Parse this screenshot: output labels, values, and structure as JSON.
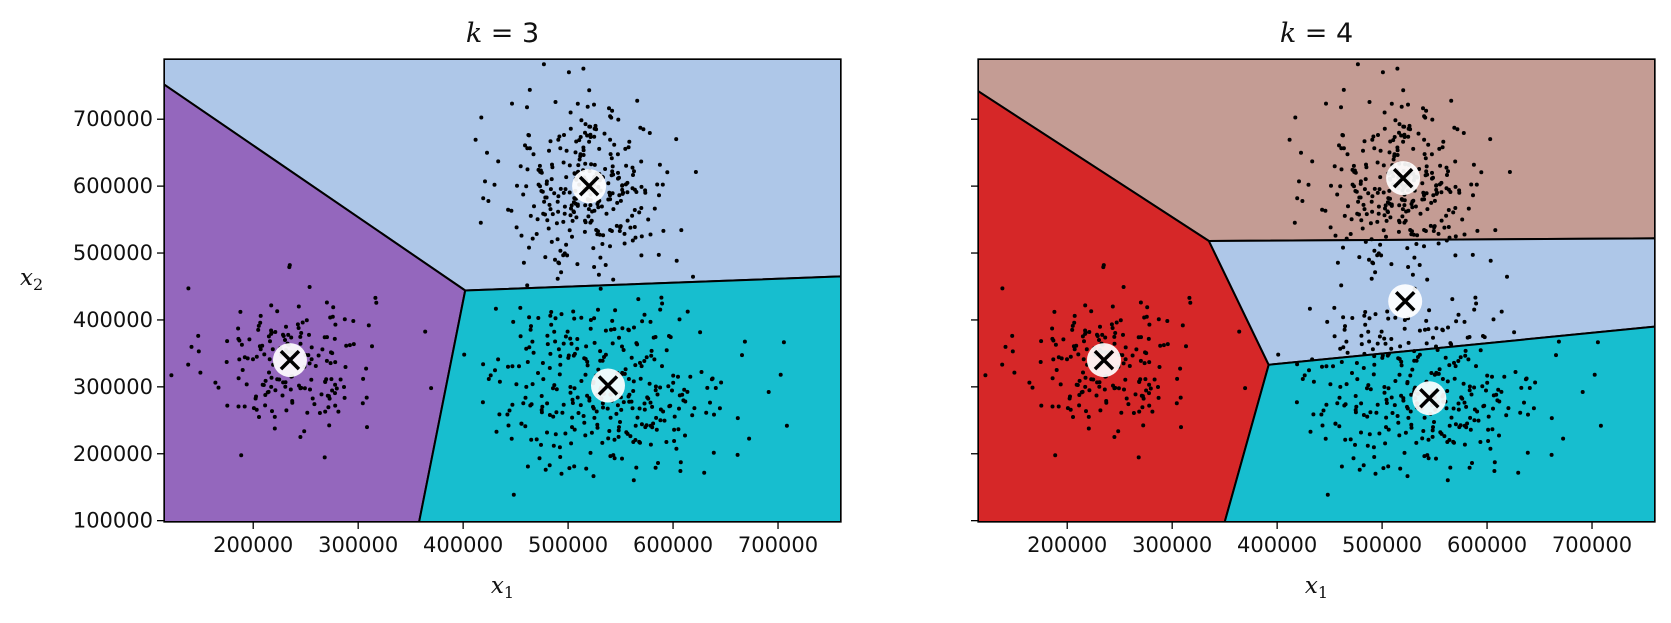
{
  "chart_data": [
    {
      "type": "scatter",
      "title": "k = 3",
      "xlabel": "x1",
      "ylabel": "x2",
      "xlim": [
        115000,
        760000
      ],
      "ylim": [
        98000,
        790000
      ],
      "xticks": [
        200000,
        300000,
        400000,
        500000,
        600000,
        700000
      ],
      "yticks": [
        100000,
        200000,
        300000,
        400000,
        500000,
        600000,
        700000
      ],
      "grid": false,
      "regions": [
        {
          "color": "#aec7e8",
          "polygon": [
            [
              115000,
              790000
            ],
            [
              760000,
              790000
            ],
            [
              760000,
              465000
            ],
            [
              402000,
              444000
            ],
            [
              115000,
              752000
            ]
          ]
        },
        {
          "color": "#9467bd",
          "polygon": [
            [
              115000,
              752000
            ],
            [
              402000,
              444000
            ],
            [
              358000,
              98000
            ],
            [
              115000,
              98000
            ]
          ]
        },
        {
          "color": "#17becf",
          "polygon": [
            [
              402000,
              444000
            ],
            [
              760000,
              465000
            ],
            [
              760000,
              98000
            ],
            [
              358000,
              98000
            ]
          ]
        }
      ],
      "centroids": [
        [
          235000,
          340000
        ],
        [
          520000,
          600000
        ],
        [
          538000,
          302000
        ]
      ],
      "clusters": [
        {
          "center": [
            235000,
            340000
          ],
          "spread": [
            40000,
            55000
          ],
          "count": 180
        },
        {
          "center": [
            520000,
            600000
          ],
          "spread": [
            40000,
            65000
          ],
          "count": 300
        },
        {
          "center": [
            538000,
            300000
          ],
          "spread": [
            58000,
            65000
          ],
          "count": 330
        }
      ]
    },
    {
      "type": "scatter",
      "title": "k = 4",
      "xlabel": "x1",
      "ylabel": "",
      "xlim": [
        115000,
        760000
      ],
      "ylim": [
        98000,
        790000
      ],
      "xticks": [
        200000,
        300000,
        400000,
        500000,
        600000,
        700000
      ],
      "yticks": [
        100000,
        200000,
        300000,
        400000,
        500000,
        600000,
        700000
      ],
      "grid": false,
      "regions": [
        {
          "color": "#c49c94",
          "polygon": [
            [
              115000,
              790000
            ],
            [
              760000,
              790000
            ],
            [
              760000,
              522000
            ],
            [
              335000,
              518000
            ],
            [
              115000,
              742000
            ]
          ]
        },
        {
          "color": "#d62728",
          "polygon": [
            [
              115000,
              742000
            ],
            [
              335000,
              518000
            ],
            [
              392000,
              333000
            ],
            [
              350000,
              98000
            ],
            [
              115000,
              98000
            ]
          ]
        },
        {
          "color": "#aec7e8",
          "polygon": [
            [
              335000,
              518000
            ],
            [
              760000,
              522000
            ],
            [
              760000,
              390000
            ],
            [
              392000,
              333000
            ]
          ]
        },
        {
          "color": "#17becf",
          "polygon": [
            [
              392000,
              333000
            ],
            [
              760000,
              390000
            ],
            [
              760000,
              98000
            ],
            [
              350000,
              98000
            ]
          ]
        }
      ],
      "centroids": [
        [
          235000,
          340000
        ],
        [
          520000,
          612000
        ],
        [
          522000,
          428000
        ],
        [
          545000,
          283000
        ]
      ],
      "clusters": [
        {
          "center": [
            235000,
            340000
          ],
          "spread": [
            40000,
            55000
          ],
          "count": 180
        },
        {
          "center": [
            520000,
            600000
          ],
          "spread": [
            40000,
            65000
          ],
          "count": 300
        },
        {
          "center": [
            538000,
            300000
          ],
          "spread": [
            58000,
            65000
          ],
          "count": 330
        }
      ]
    }
  ]
}
